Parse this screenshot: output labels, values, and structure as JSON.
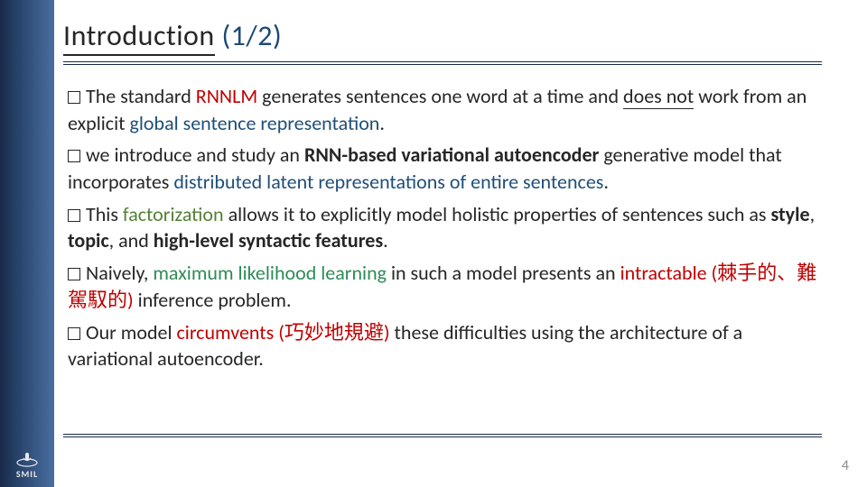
{
  "title": {
    "word": "Introduction",
    "paren": " (1/2)"
  },
  "colors": {
    "band_gradient": [
      "#1b2a4a",
      "#2a4770",
      "#4a6fa0"
    ],
    "rule": "#1b2a4a",
    "text": "#262626",
    "title_paren": "#1b4a78",
    "red": "#c00000",
    "blue": "#1f4e79",
    "green": "#538135",
    "teal": "#2e8b57",
    "pagenum": "#8a8a8a",
    "logo": "#e8e8e8"
  },
  "typography": {
    "title_fontsize": 32,
    "body_fontsize": 22,
    "body_lineheight": 1.35
  },
  "bullets": [
    {
      "parts": [
        {
          "t": "The standard "
        },
        {
          "t": "RNNLM",
          "cls": "c-red"
        },
        {
          "t": " generates sentences one word at a time and "
        },
        {
          "t": "does not",
          "cls": "u"
        },
        {
          "t": " work from an explicit "
        },
        {
          "t": "global sentence representation",
          "cls": "c-blue"
        },
        {
          "t": "."
        }
      ]
    },
    {
      "parts": [
        {
          "t": "we introduce and study an "
        },
        {
          "t": "RNN-based variational autoencoder",
          "bold": true
        },
        {
          "t": " generative model that incorporates "
        },
        {
          "t": "distributed latent representations of entire sentences",
          "cls": "c-blue"
        },
        {
          "t": "."
        }
      ]
    },
    {
      "parts": [
        {
          "t": "This "
        },
        {
          "t": "factorization",
          "cls": "c-green"
        },
        {
          "t": " allows it to explicitly model holistic properties of sentences such as "
        },
        {
          "t": "style",
          "bold": true
        },
        {
          "t": ", "
        },
        {
          "t": "topic",
          "bold": true
        },
        {
          "t": ", and "
        },
        {
          "t": "high-level syntactic features",
          "bold": true
        },
        {
          "t": "."
        }
      ]
    },
    {
      "parts": [
        {
          "t": "Naively, "
        },
        {
          "t": "maximum likelihood learning",
          "cls": "c-teal"
        },
        {
          "t": " in such a model presents an "
        },
        {
          "t": "intractable (棘手的、難駕馭的)",
          "cls": "c-red"
        },
        {
          "t": " inference problem."
        }
      ]
    },
    {
      "parts": [
        {
          "t": "Our model "
        },
        {
          "t": "circumvents (巧妙地規避)",
          "cls": "c-red"
        },
        {
          "t": " these difficulties using the architecture of a variational autoencoder."
        }
      ]
    }
  ],
  "logo_text": "SMIL",
  "page_number": "4"
}
